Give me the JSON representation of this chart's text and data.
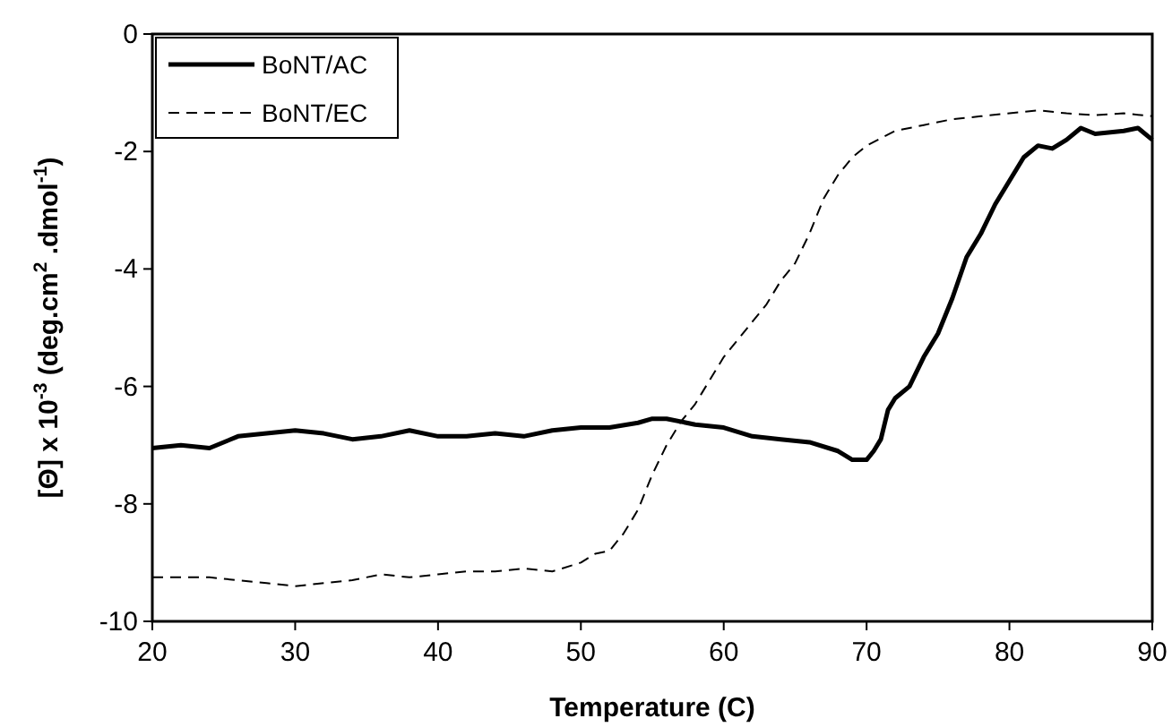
{
  "chart_data": {
    "type": "line",
    "xlabel": "Temperature (C)",
    "ylabel": "[Θ] x 10$^{-3}$ (deg.cm$^{2}$ .dmol$^{-1}$)",
    "xlim": [
      20,
      90
    ],
    "xticks": [
      20,
      30,
      40,
      50,
      60,
      70,
      80,
      90
    ],
    "ylim": [
      -10,
      0
    ],
    "yticks": [
      -10,
      -8,
      -6,
      -4,
      -2,
      0
    ],
    "legend": "top left",
    "series": [
      {
        "name": "BoNT/AC",
        "color": "#000000",
        "line_style": "solid",
        "x": [
          20,
          22,
          24,
          26,
          28,
          30,
          32,
          34,
          36,
          38,
          40,
          42,
          44,
          46,
          48,
          50,
          52,
          54,
          55,
          56,
          58,
          60,
          62,
          64,
          66,
          68,
          69,
          70,
          70.5,
          71,
          71.5,
          72,
          73,
          74,
          75,
          76,
          77,
          78,
          79,
          80,
          81,
          82,
          83,
          84,
          85,
          86,
          88,
          89,
          90
        ],
        "values": [
          -7.05,
          -7.0,
          -7.05,
          -6.85,
          -6.8,
          -6.75,
          -6.8,
          -6.9,
          -6.85,
          -6.75,
          -6.85,
          -6.85,
          -6.8,
          -6.85,
          -6.75,
          -6.7,
          -6.7,
          -6.62,
          -6.55,
          -6.55,
          -6.65,
          -6.7,
          -6.85,
          -6.9,
          -6.95,
          -7.1,
          -7.25,
          -7.25,
          -7.1,
          -6.9,
          -6.4,
          -6.2,
          -6.0,
          -5.5,
          -5.1,
          -4.5,
          -3.8,
          -3.4,
          -2.9,
          -2.5,
          -2.1,
          -1.9,
          -1.95,
          -1.8,
          -1.6,
          -1.7,
          -1.65,
          -1.6,
          -1.8
        ]
      },
      {
        "name": "BoNT/EC",
        "color": "#000000",
        "line_style": "dashed",
        "x": [
          20,
          24,
          28,
          30,
          32,
          34,
          36,
          38,
          40,
          42,
          44,
          46,
          48,
          50,
          51,
          52,
          53,
          54,
          55,
          56,
          57,
          58,
          59,
          60,
          61,
          62,
          63,
          64,
          65,
          66,
          67,
          68,
          69,
          70,
          72,
          74,
          76,
          78,
          80,
          82,
          84,
          86,
          88,
          90
        ],
        "values": [
          -9.25,
          -9.25,
          -9.35,
          -9.4,
          -9.35,
          -9.3,
          -9.2,
          -9.25,
          -9.2,
          -9.15,
          -9.15,
          -9.1,
          -9.15,
          -9.0,
          -8.85,
          -8.8,
          -8.5,
          -8.1,
          -7.5,
          -7.0,
          -6.6,
          -6.3,
          -5.9,
          -5.5,
          -5.2,
          -4.9,
          -4.6,
          -4.2,
          -3.9,
          -3.4,
          -2.8,
          -2.4,
          -2.1,
          -1.9,
          -1.65,
          -1.55,
          -1.45,
          -1.4,
          -1.35,
          -1.3,
          -1.35,
          -1.38,
          -1.35,
          -1.4
        ]
      }
    ]
  }
}
